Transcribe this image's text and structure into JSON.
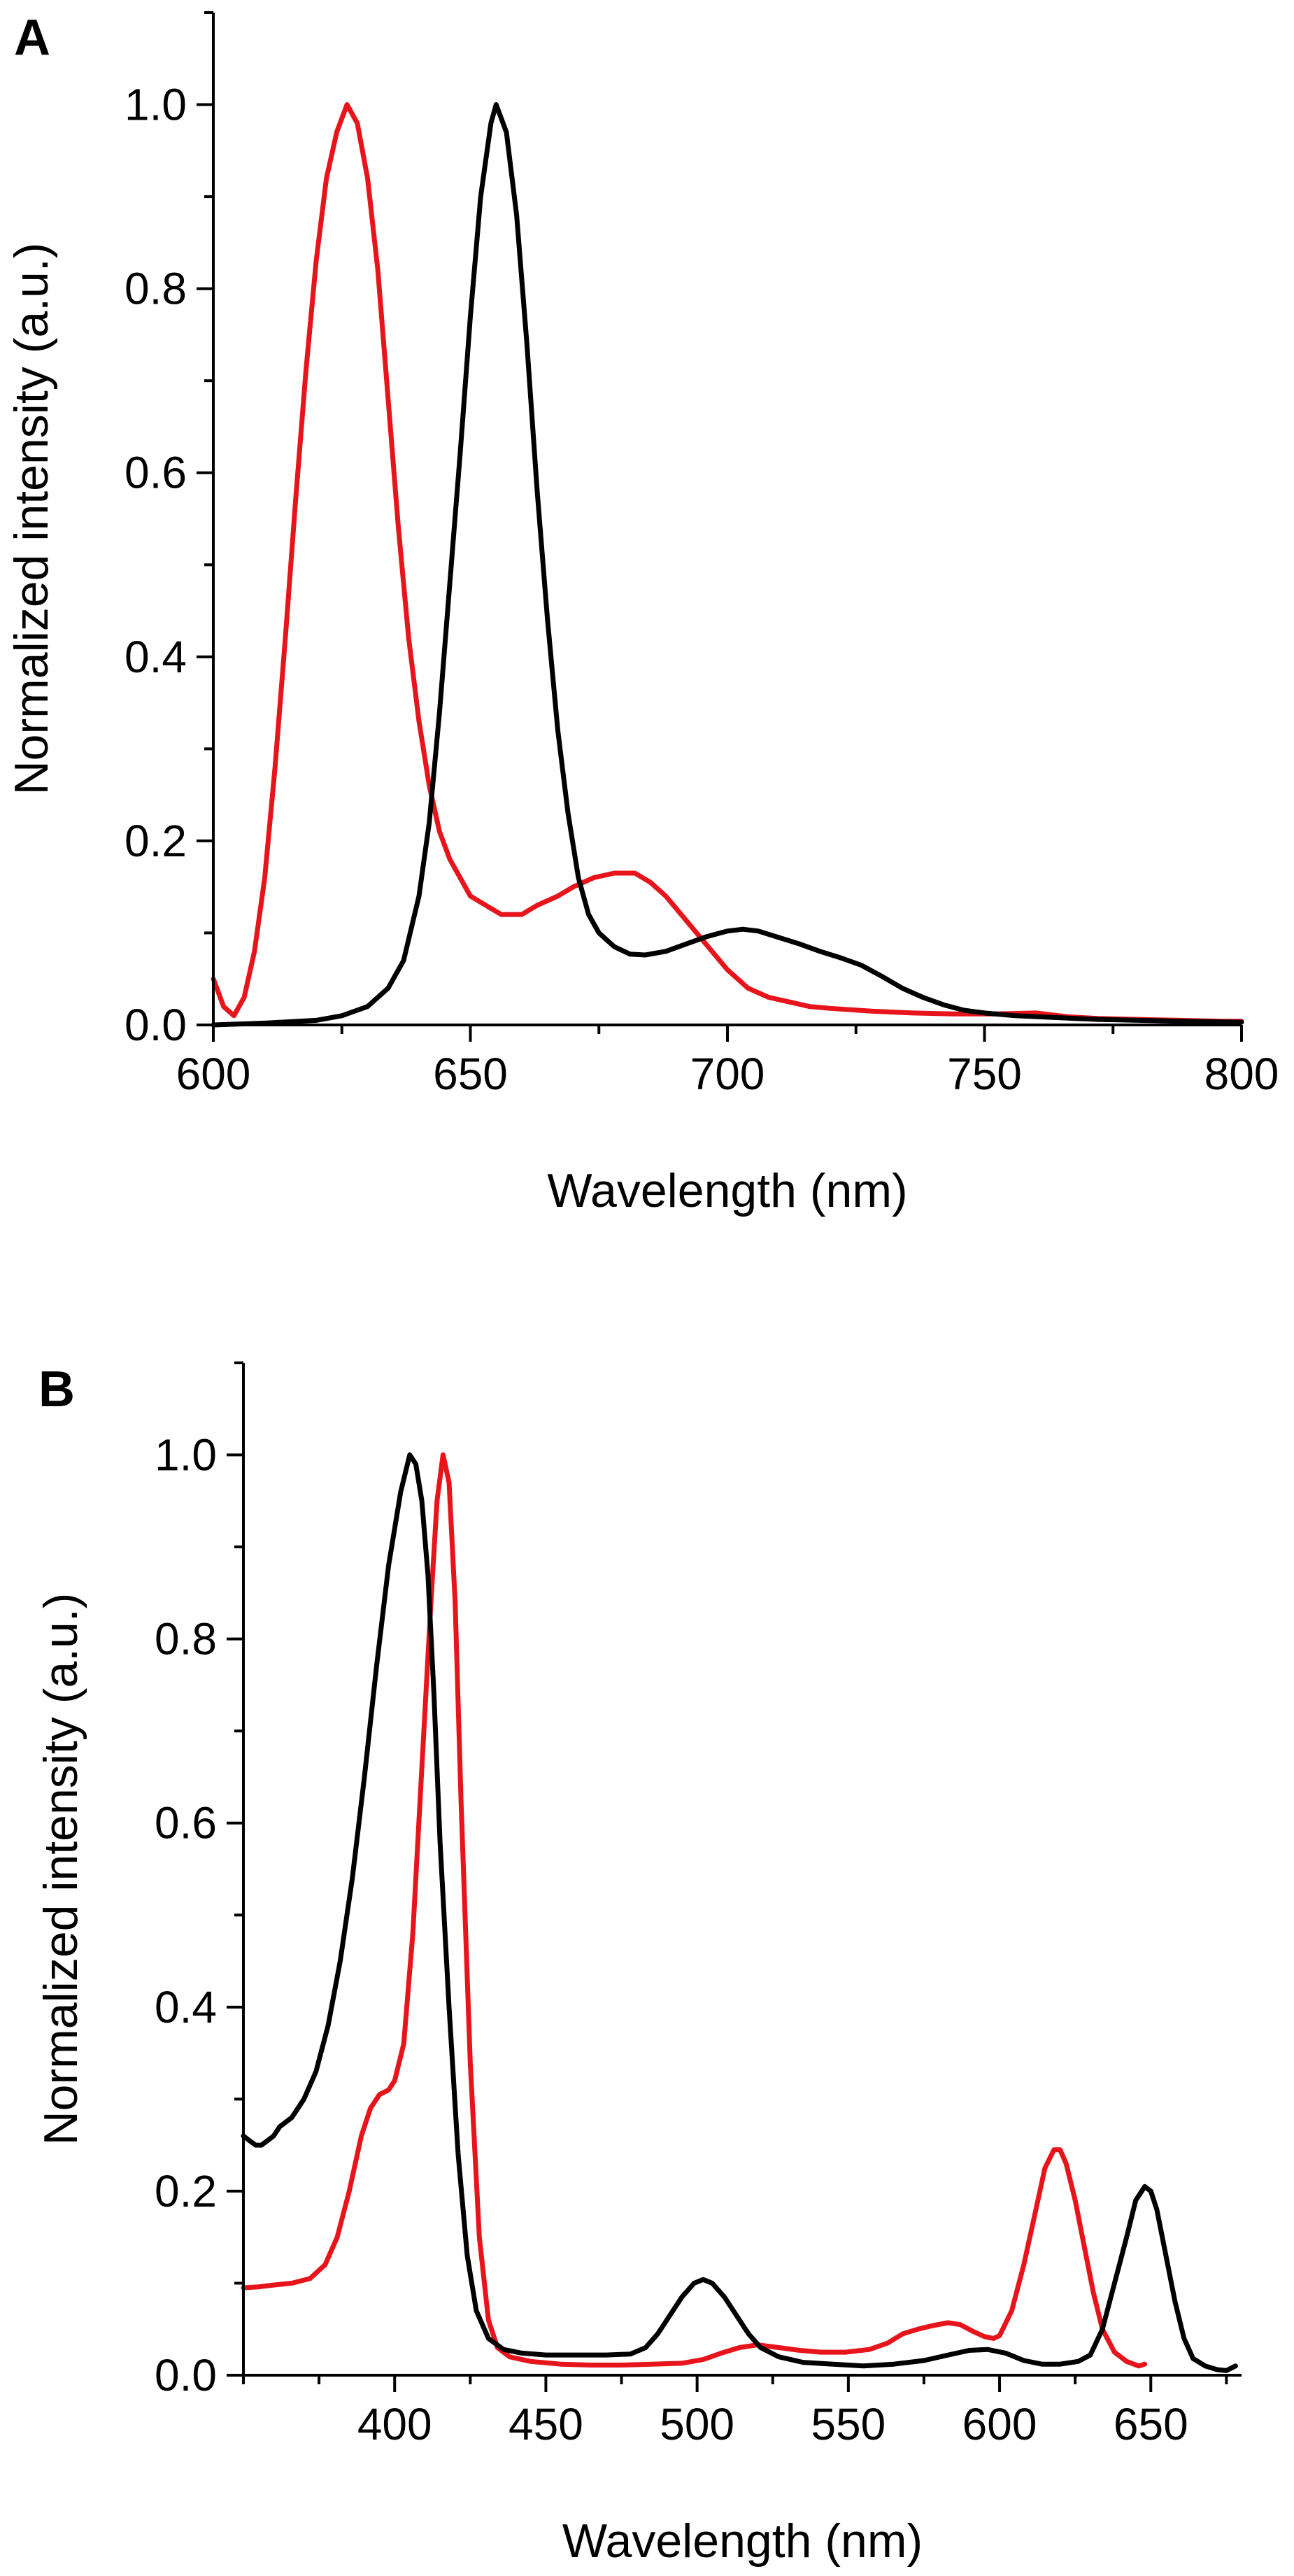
{
  "chart_data": [
    {
      "panel": "A",
      "type": "line",
      "xlabel": "Wavelength (nm)",
      "ylabel": "Normalized intensity (a.u.)",
      "xlim": [
        600,
        800
      ],
      "ylim": [
        0,
        1.1
      ],
      "x_ticks": [
        600,
        650,
        700,
        750,
        800
      ],
      "y_ticks": [
        0.0,
        0.2,
        0.4,
        0.6,
        0.8,
        1.0
      ],
      "y_tick_labels": [
        "0.0",
        "0.2",
        "0.4",
        "0.6",
        "0.8",
        "1.0"
      ],
      "grid": false,
      "series": [
        {
          "name": "red",
          "color": "#e8141b",
          "points": [
            [
              600,
              0.05
            ],
            [
              602,
              0.02
            ],
            [
              604,
              0.01
            ],
            [
              606,
              0.03
            ],
            [
              608,
              0.08
            ],
            [
              610,
              0.16
            ],
            [
              612,
              0.28
            ],
            [
              614,
              0.42
            ],
            [
              616,
              0.57
            ],
            [
              618,
              0.71
            ],
            [
              620,
              0.83
            ],
            [
              622,
              0.92
            ],
            [
              624,
              0.97
            ],
            [
              626,
              1.0
            ],
            [
              628,
              0.98
            ],
            [
              630,
              0.92
            ],
            [
              632,
              0.82
            ],
            [
              634,
              0.68
            ],
            [
              636,
              0.54
            ],
            [
              638,
              0.42
            ],
            [
              640,
              0.33
            ],
            [
              642,
              0.26
            ],
            [
              644,
              0.21
            ],
            [
              646,
              0.18
            ],
            [
              648,
              0.16
            ],
            [
              650,
              0.14
            ],
            [
              653,
              0.13
            ],
            [
              656,
              0.12
            ],
            [
              660,
              0.12
            ],
            [
              663,
              0.13
            ],
            [
              667,
              0.14
            ],
            [
              670,
              0.15
            ],
            [
              674,
              0.16
            ],
            [
              678,
              0.165
            ],
            [
              682,
              0.165
            ],
            [
              685,
              0.155
            ],
            [
              688,
              0.14
            ],
            [
              691,
              0.12
            ],
            [
              694,
              0.1
            ],
            [
              697,
              0.08
            ],
            [
              700,
              0.06
            ],
            [
              704,
              0.04
            ],
            [
              708,
              0.03
            ],
            [
              712,
              0.025
            ],
            [
              716,
              0.02
            ],
            [
              720,
              0.018
            ],
            [
              728,
              0.015
            ],
            [
              736,
              0.013
            ],
            [
              744,
              0.012
            ],
            [
              752,
              0.012
            ],
            [
              760,
              0.013
            ],
            [
              766,
              0.009
            ],
            [
              772,
              0.007
            ],
            [
              780,
              0.006
            ],
            [
              788,
              0.005
            ],
            [
              796,
              0.004
            ],
            [
              800,
              0.004
            ]
          ]
        },
        {
          "name": "black",
          "color": "#000000",
          "points": [
            [
              600,
              0.0
            ],
            [
              610,
              0.002
            ],
            [
              620,
              0.005
            ],
            [
              625,
              0.01
            ],
            [
              630,
              0.02
            ],
            [
              634,
              0.04
            ],
            [
              637,
              0.07
            ],
            [
              640,
              0.14
            ],
            [
              642,
              0.22
            ],
            [
              644,
              0.34
            ],
            [
              646,
              0.48
            ],
            [
              648,
              0.62
            ],
            [
              650,
              0.77
            ],
            [
              652,
              0.9
            ],
            [
              654,
              0.98
            ],
            [
              655,
              1.0
            ],
            [
              657,
              0.97
            ],
            [
              659,
              0.88
            ],
            [
              661,
              0.74
            ],
            [
              663,
              0.58
            ],
            [
              665,
              0.44
            ],
            [
              667,
              0.32
            ],
            [
              669,
              0.23
            ],
            [
              671,
              0.16
            ],
            [
              673,
              0.12
            ],
            [
              675,
              0.1
            ],
            [
              678,
              0.085
            ],
            [
              681,
              0.077
            ],
            [
              684,
              0.076
            ],
            [
              688,
              0.08
            ],
            [
              692,
              0.088
            ],
            [
              696,
              0.096
            ],
            [
              700,
              0.102
            ],
            [
              703,
              0.104
            ],
            [
              706,
              0.102
            ],
            [
              710,
              0.095
            ],
            [
              714,
              0.088
            ],
            [
              718,
              0.08
            ],
            [
              722,
              0.073
            ],
            [
              726,
              0.065
            ],
            [
              730,
              0.053
            ],
            [
              734,
              0.04
            ],
            [
              738,
              0.03
            ],
            [
              742,
              0.022
            ],
            [
              746,
              0.016
            ],
            [
              750,
              0.013
            ],
            [
              756,
              0.01
            ],
            [
              764,
              0.008
            ],
            [
              772,
              0.006
            ],
            [
              780,
              0.005
            ],
            [
              788,
              0.004
            ],
            [
              800,
              0.003
            ]
          ]
        }
      ]
    },
    {
      "panel": "B",
      "type": "line",
      "xlabel": "Wavelength (nm)",
      "ylabel": "Normalized intensity (a.u.)",
      "xlim": [
        350,
        680
      ],
      "ylim": [
        0,
        1.1
      ],
      "x_ticks": [
        400,
        450,
        500,
        550,
        600,
        650
      ],
      "y_ticks": [
        0.0,
        0.2,
        0.4,
        0.6,
        0.8,
        1.0
      ],
      "y_tick_labels": [
        "0.0",
        "0.2",
        "0.4",
        "0.6",
        "0.8",
        "1.0"
      ],
      "grid": false,
      "series": [
        {
          "name": "red",
          "color": "#e8141b",
          "points": [
            [
              350,
              0.095
            ],
            [
              355,
              0.096
            ],
            [
              360,
              0.098
            ],
            [
              366,
              0.1
            ],
            [
              372,
              0.105
            ],
            [
              377,
              0.12
            ],
            [
              381,
              0.15
            ],
            [
              385,
              0.2
            ],
            [
              389,
              0.26
            ],
            [
              392,
              0.29
            ],
            [
              395,
              0.305
            ],
            [
              398,
              0.31
            ],
            [
              400,
              0.32
            ],
            [
              403,
              0.36
            ],
            [
              406,
              0.48
            ],
            [
              409,
              0.66
            ],
            [
              412,
              0.84
            ],
            [
              414,
              0.95
            ],
            [
              416,
              1.0
            ],
            [
              418,
              0.97
            ],
            [
              420,
              0.84
            ],
            [
              422,
              0.62
            ],
            [
              425,
              0.34
            ],
            [
              428,
              0.15
            ],
            [
              431,
              0.06
            ],
            [
              434,
              0.03
            ],
            [
              438,
              0.02
            ],
            [
              445,
              0.015
            ],
            [
              455,
              0.012
            ],
            [
              465,
              0.011
            ],
            [
              475,
              0.011
            ],
            [
              485,
              0.012
            ],
            [
              495,
              0.013
            ],
            [
              502,
              0.017
            ],
            [
              508,
              0.024
            ],
            [
              514,
              0.03
            ],
            [
              520,
              0.033
            ],
            [
              527,
              0.03
            ],
            [
              534,
              0.027
            ],
            [
              541,
              0.025
            ],
            [
              549,
              0.025
            ],
            [
              557,
              0.028
            ],
            [
              563,
              0.035
            ],
            [
              568,
              0.045
            ],
            [
              573,
              0.05
            ],
            [
              578,
              0.054
            ],
            [
              583,
              0.057
            ],
            [
              587,
              0.055
            ],
            [
              591,
              0.048
            ],
            [
              595,
              0.042
            ],
            [
              598,
              0.04
            ],
            [
              600,
              0.043
            ],
            [
              604,
              0.07
            ],
            [
              608,
              0.12
            ],
            [
              612,
              0.18
            ],
            [
              615,
              0.225
            ],
            [
              618,
              0.245
            ],
            [
              620,
              0.245
            ],
            [
              622,
              0.23
            ],
            [
              625,
              0.19
            ],
            [
              628,
              0.14
            ],
            [
              631,
              0.09
            ],
            [
              634,
              0.05
            ],
            [
              638,
              0.025
            ],
            [
              642,
              0.015
            ],
            [
              646,
              0.01
            ],
            [
              648,
              0.012
            ]
          ]
        },
        {
          "name": "black",
          "color": "#000000",
          "points": [
            [
              350,
              0.26
            ],
            [
              352,
              0.255
            ],
            [
              354,
              0.25
            ],
            [
              356,
              0.25
            ],
            [
              358,
              0.255
            ],
            [
              360,
              0.26
            ],
            [
              362,
              0.27
            ],
            [
              366,
              0.28
            ],
            [
              370,
              0.3
            ],
            [
              374,
              0.33
            ],
            [
              378,
              0.38
            ],
            [
              382,
              0.45
            ],
            [
              386,
              0.54
            ],
            [
              390,
              0.65
            ],
            [
              394,
              0.77
            ],
            [
              398,
              0.88
            ],
            [
              402,
              0.96
            ],
            [
              405,
              1.0
            ],
            [
              407,
              0.99
            ],
            [
              409,
              0.95
            ],
            [
              411,
              0.87
            ],
            [
              413,
              0.74
            ],
            [
              415,
              0.58
            ],
            [
              418,
              0.4
            ],
            [
              421,
              0.24
            ],
            [
              424,
              0.13
            ],
            [
              427,
              0.07
            ],
            [
              431,
              0.04
            ],
            [
              436,
              0.028
            ],
            [
              442,
              0.024
            ],
            [
              450,
              0.022
            ],
            [
              460,
              0.022
            ],
            [
              470,
              0.022
            ],
            [
              478,
              0.023
            ],
            [
              483,
              0.03
            ],
            [
              487,
              0.045
            ],
            [
              491,
              0.065
            ],
            [
              495,
              0.085
            ],
            [
              499,
              0.1
            ],
            [
              502,
              0.104
            ],
            [
              505,
              0.1
            ],
            [
              509,
              0.085
            ],
            [
              513,
              0.065
            ],
            [
              517,
              0.045
            ],
            [
              521,
              0.03
            ],
            [
              527,
              0.02
            ],
            [
              535,
              0.014
            ],
            [
              545,
              0.012
            ],
            [
              555,
              0.01
            ],
            [
              565,
              0.012
            ],
            [
              575,
              0.016
            ],
            [
              583,
              0.022
            ],
            [
              590,
              0.027
            ],
            [
              596,
              0.028
            ],
            [
              602,
              0.024
            ],
            [
              608,
              0.016
            ],
            [
              614,
              0.012
            ],
            [
              620,
              0.012
            ],
            [
              626,
              0.015
            ],
            [
              630,
              0.022
            ],
            [
              634,
              0.05
            ],
            [
              638,
              0.1
            ],
            [
              642,
              0.15
            ],
            [
              645,
              0.19
            ],
            [
              648,
              0.205
            ],
            [
              650,
              0.2
            ],
            [
              652,
              0.18
            ],
            [
              655,
              0.13
            ],
            [
              658,
              0.08
            ],
            [
              661,
              0.04
            ],
            [
              664,
              0.018
            ],
            [
              668,
              0.01
            ],
            [
              672,
              0.006
            ],
            [
              675,
              0.005
            ],
            [
              678,
              0.01
            ]
          ]
        }
      ]
    }
  ]
}
